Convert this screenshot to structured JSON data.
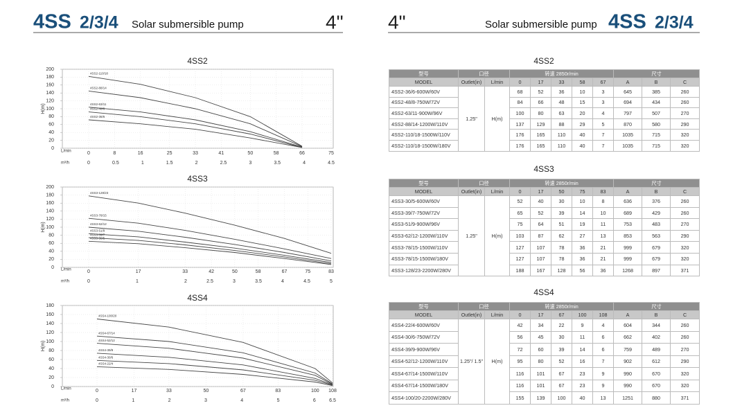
{
  "header": {
    "left_series": "4SS",
    "left_models": "2/3/4",
    "left_subtitle": "Solar submersible pump",
    "left_size": "4\"",
    "right_size": "4\"",
    "right_subtitle": "Solar submersible pump",
    "right_series": "4SS",
    "right_models": "2/3/4"
  },
  "chart_data": [
    {
      "type": "line",
      "title": "4SS2",
      "ylabel": "H(m)",
      "xlabel": "L/min",
      "x2label": "m³/h",
      "grid": true,
      "x": [
        0,
        16,
        33,
        50,
        66
      ],
      "xlim": [
        0,
        75
      ],
      "xticks": [
        0,
        8,
        16,
        25,
        33,
        41,
        50,
        58,
        66,
        75
      ],
      "x2lim": [
        0,
        4.5
      ],
      "x2ticks": [
        0,
        0.5,
        1,
        1.5,
        2,
        2.5,
        3,
        3.5,
        4,
        4.5
      ],
      "ylim": [
        0,
        200
      ],
      "yticks": [
        0,
        20,
        40,
        60,
        80,
        100,
        120,
        140,
        160,
        180,
        200
      ],
      "series": [
        {
          "name": "4SS2-110/18",
          "color": "#444444",
          "values": [
            182,
            162,
            128,
            80,
            5
          ]
        },
        {
          "name": "4SS2-88/14",
          "color": "#444444",
          "values": [
            145,
            128,
            100,
            62,
            4
          ]
        },
        {
          "name": "4SS2-63/11",
          "color": "#444444",
          "values": [
            104,
            92,
            72,
            42,
            3
          ]
        },
        {
          "name": "4SS2-48/8",
          "color": "#444444",
          "values": [
            92,
            80,
            62,
            36,
            2
          ]
        },
        {
          "name": "4SS2-36/6",
          "color": "#444444",
          "values": [
            72,
            62,
            48,
            26,
            2
          ]
        }
      ]
    },
    {
      "type": "line",
      "title": "4SS3",
      "ylabel": "H(m)",
      "xlabel": "L/min",
      "x2label": "m³/h",
      "grid": true,
      "x": [
        0,
        17,
        33,
        50,
        67,
        83
      ],
      "xlim": [
        0,
        83
      ],
      "xticks": [
        0,
        17,
        33,
        42,
        50,
        58,
        67,
        75,
        83
      ],
      "x2lim": [
        0,
        5
      ],
      "x2ticks": [
        0,
        1,
        2,
        2.5,
        3,
        3.5,
        4,
        4.5,
        5
      ],
      "ylim": [
        0,
        200
      ],
      "yticks": [
        0,
        20,
        40,
        60,
        80,
        100,
        120,
        140,
        160,
        180,
        200
      ],
      "series": [
        {
          "name": "4SS3-128/23",
          "color": "#444444",
          "values": [
            178,
            160,
            135,
            105,
            72,
            35
          ]
        },
        {
          "name": "4SS3-78/15",
          "color": "#444444",
          "values": [
            122,
            110,
            92,
            70,
            46,
            22
          ]
        },
        {
          "name": "4SS3-62/12",
          "color": "#444444",
          "values": [
            100,
            90,
            75,
            57,
            37,
            16
          ]
        },
        {
          "name": "4SS3-51/9",
          "color": "#444444",
          "values": [
            84,
            76,
            63,
            48,
            30,
            12
          ]
        },
        {
          "name": "4SS3-39/7",
          "color": "#444444",
          "values": [
            74,
            67,
            56,
            42,
            26,
            9
          ]
        },
        {
          "name": "4SS3-30/5",
          "color": "#444444",
          "values": [
            65,
            59,
            49,
            37,
            22,
            7
          ]
        }
      ]
    },
    {
      "type": "line",
      "title": "4SS4",
      "ylabel": "H(m)",
      "xlabel": "L/min",
      "x2label": "m³/h",
      "grid": true,
      "x": [
        0,
        33,
        67,
        100,
        108
      ],
      "xlim": [
        0,
        108
      ],
      "xticks": [
        0,
        17,
        33,
        50,
        67,
        83,
        100,
        108
      ],
      "x2lim": [
        0,
        6.5
      ],
      "x2ticks": [
        0,
        1,
        2,
        3,
        4,
        5,
        6,
        6.5
      ],
      "ylim": [
        0,
        180
      ],
      "yticks": [
        0,
        20,
        40,
        60,
        80,
        100,
        120,
        140,
        160,
        180
      ],
      "series": [
        {
          "name": "4SS4-100/20",
          "color": "#444444",
          "values": [
            150,
            132,
            98,
            40,
            8
          ]
        },
        {
          "name": "4SS4-67/14",
          "color": "#444444",
          "values": [
            112,
            100,
            75,
            30,
            6
          ]
        },
        {
          "name": "4SS4-52/12",
          "color": "#444444",
          "values": [
            96,
            85,
            63,
            25,
            5
          ]
        },
        {
          "name": "4SS4-39/9",
          "color": "#444444",
          "values": [
            74,
            65,
            48,
            18,
            4
          ]
        },
        {
          "name": "4SS4-30/6",
          "color": "#444444",
          "values": [
            58,
            51,
            37,
            14,
            3
          ]
        },
        {
          "name": "4SS4-22/4",
          "color": "#444444",
          "values": [
            44,
            38,
            27,
            10,
            2
          ]
        }
      ]
    }
  ],
  "tables": [
    {
      "title": "4SS2",
      "header1": [
        "型号",
        "口径",
        "转速 2850r/min",
        "尺寸"
      ],
      "header2": [
        "MODEL",
        "Outlet(in)",
        "L/min",
        0,
        17,
        33,
        58,
        67,
        "A",
        "B",
        "C"
      ],
      "outlet": "1.25\"",
      "head": "H(m)",
      "rows": [
        [
          "4SS2-36/6-600W/60V",
          68,
          52,
          36,
          10,
          3,
          645,
          385,
          260
        ],
        [
          "4SS2-48/8-750W/72V",
          84,
          66,
          48,
          15,
          3,
          694,
          434,
          260
        ],
        [
          "4SS2-63/11-900W/96V",
          100,
          80,
          63,
          20,
          4,
          797,
          507,
          270
        ],
        [
          "4SS2-88/14-1200W/110V",
          137,
          129,
          88,
          29,
          5,
          870,
          580,
          290
        ],
        [
          "4SS2-110/18-1500W/110V",
          176,
          165,
          110,
          40,
          7,
          1035,
          715,
          320
        ],
        [
          "4SS2-110/18-1500W/180V",
          176,
          165,
          110,
          40,
          7,
          1035,
          715,
          320
        ]
      ]
    },
    {
      "title": "4SS3",
      "header1": [
        "型号",
        "口径",
        "转速 2850r/min",
        "尺寸"
      ],
      "header2": [
        "MODEL",
        "Outlet(in)",
        "L/min",
        0,
        17,
        50,
        75,
        83,
        "A",
        "B",
        "C"
      ],
      "outlet": "1.25\"",
      "head": "H(m)",
      "rows": [
        [
          "4SS3-30/5-600W/60V",
          52,
          40,
          30,
          10,
          8,
          636,
          376,
          260
        ],
        [
          "4SS3-39/7-750W/72V",
          65,
          52,
          39,
          14,
          10,
          689,
          429,
          260
        ],
        [
          "4SS3-51/9-900W/96V",
          75,
          64,
          51,
          19,
          11,
          753,
          483,
          270
        ],
        [
          "4SS3-62/12-1200W/110V",
          103,
          87,
          62,
          27,
          13,
          853,
          563,
          290
        ],
        [
          "4SS3-78/15-1500W/110V",
          127,
          107,
          78,
          36,
          21,
          999,
          679,
          320
        ],
        [
          "4SS3-78/15-1500W/180V",
          127,
          107,
          78,
          36,
          21,
          999,
          679,
          320
        ],
        [
          "4SS3-128/23-2200W/280V",
          188,
          167,
          128,
          56,
          36,
          1268,
          897,
          371
        ]
      ]
    },
    {
      "title": "4SS4",
      "header1": [
        "型号",
        "口径",
        "转速 2850r/min",
        "尺寸"
      ],
      "header2": [
        "MODEL",
        "Outlet(in)",
        "L/min",
        0,
        17,
        67,
        100,
        108,
        "A",
        "B",
        "C"
      ],
      "outlet": "1.25\"/ 1.5\"",
      "head": "H(m)",
      "rows": [
        [
          "4SS4-22/4-600W/60V",
          42,
          34,
          22,
          9,
          4,
          604,
          344,
          260
        ],
        [
          "4SS4-30/6-750W/72V",
          56,
          45,
          30,
          11,
          6,
          662,
          402,
          260
        ],
        [
          "4SS4-39/9-900W/96V",
          72,
          60,
          39,
          14,
          6,
          759,
          489,
          270
        ],
        [
          "4SS4-52/12-1200W/110V",
          95,
          80,
          52,
          16,
          7,
          902,
          612,
          290
        ],
        [
          "4SS4-67/14-1500W/110V",
          116,
          101,
          67,
          23,
          9,
          990,
          670,
          320
        ],
        [
          "4SS4-67/14-1500W/180V",
          116,
          101,
          67,
          23,
          9,
          990,
          670,
          320
        ],
        [
          "4SS4-100/20-2200W/280V",
          155,
          139,
          100,
          40,
          13,
          1251,
          880,
          371
        ]
      ]
    }
  ]
}
